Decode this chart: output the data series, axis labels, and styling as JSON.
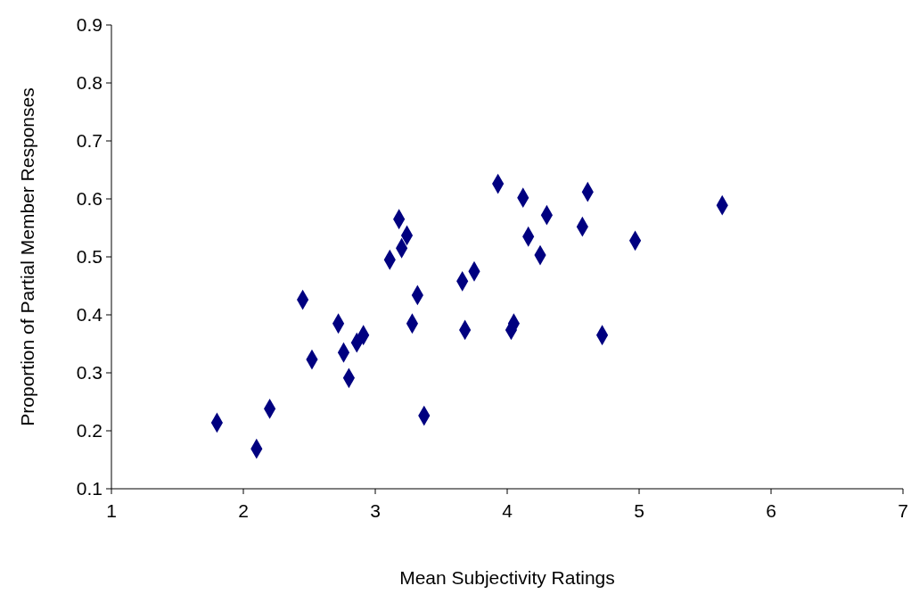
{
  "chart_data": {
    "type": "scatter",
    "xlabel": "Mean Subjectivity Ratings",
    "ylabel": "Proportion of Partial Member Responses",
    "x": [
      1.8,
      2.1,
      2.2,
      2.45,
      2.52,
      2.72,
      2.76,
      2.8,
      2.86,
      2.91,
      3.11,
      3.18,
      3.2,
      3.24,
      3.28,
      3.32,
      3.37,
      3.66,
      3.68,
      3.75,
      3.93,
      4.03,
      4.05,
      4.12,
      4.16,
      4.25,
      4.3,
      4.57,
      4.61,
      4.72,
      4.97,
      5.63
    ],
    "series": [
      {
        "color": "#000080",
        "values": [
          0.214,
          0.169,
          0.238,
          0.426,
          0.323,
          0.385,
          0.335,
          0.291,
          0.352,
          0.365,
          0.495,
          0.565,
          0.515,
          0.537,
          0.385,
          0.434,
          0.226,
          0.458,
          0.374,
          0.475,
          0.626,
          0.374,
          0.385,
          0.602,
          0.535,
          0.503,
          0.572,
          0.552,
          0.612,
          0.365,
          0.528,
          0.589
        ]
      }
    ],
    "xlim": [
      1,
      7
    ],
    "xticks": [
      1,
      2,
      3,
      4,
      5,
      6,
      7
    ],
    "ylim": [
      0.1,
      0.9
    ],
    "yticks": [
      0.1,
      0.2,
      0.3,
      0.4,
      0.5,
      0.6,
      0.7,
      0.8,
      0.9
    ],
    "marker": "diamond",
    "grid": false
  }
}
